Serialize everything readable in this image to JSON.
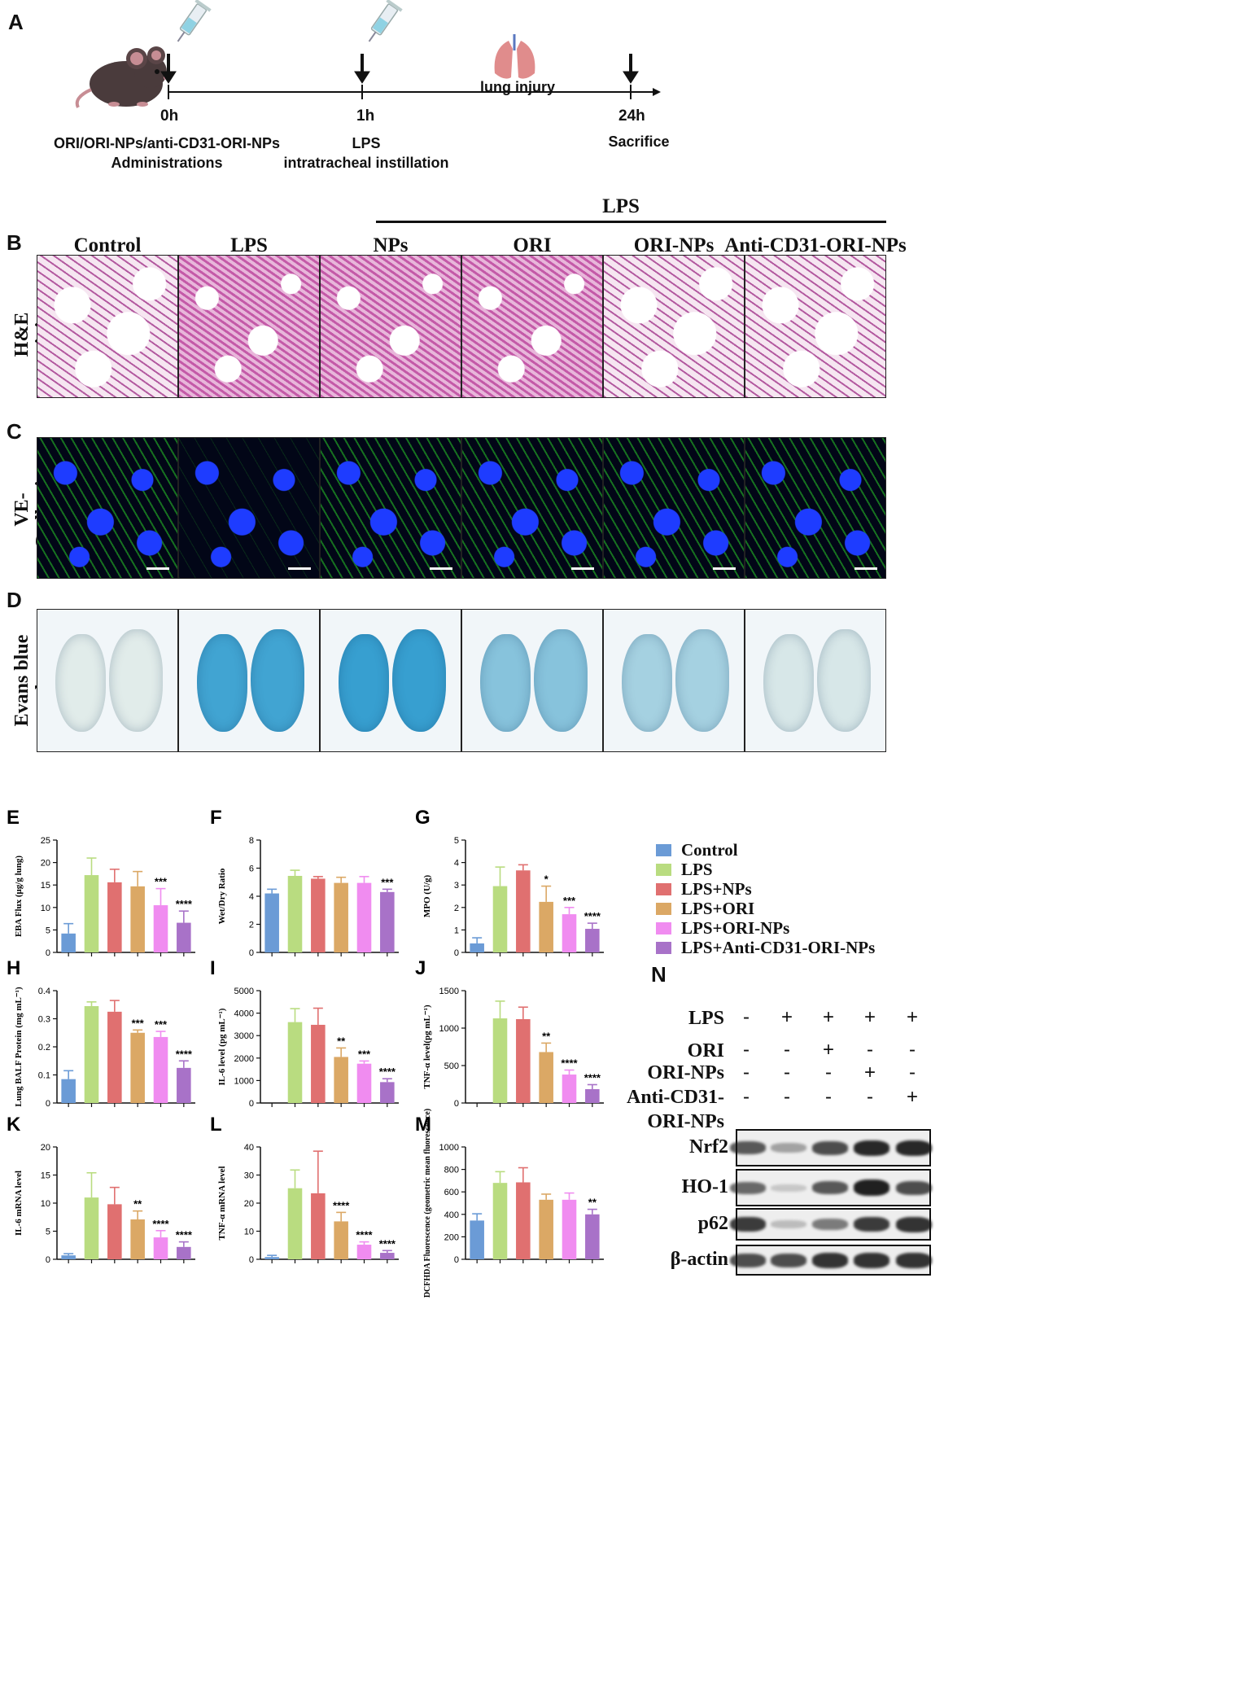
{
  "panel_letters": {
    "A": "A",
    "B": "B",
    "C": "C",
    "D": "D",
    "E": "E",
    "F": "F",
    "G": "G",
    "H": "H",
    "I": "I",
    "J": "J",
    "K": "K",
    "L": "L",
    "M": "M",
    "N": "N"
  },
  "timeline": {
    "t0": "0h",
    "t1": "1h",
    "t24": "24h",
    "lung_injury": "lung injury",
    "admin_line1": "ORI/ORI-NPs/anti-CD31-ORI-NPs",
    "admin_line2": "Administrations",
    "lps_line1": "LPS",
    "lps_line2": "intratracheal instillation",
    "sacrifice": "Sacrifice"
  },
  "lps_bracket": "LPS",
  "columns": [
    "Control",
    "LPS",
    "NPs",
    "ORI",
    "ORI-NPs",
    "Anti-CD31-ORI-NPs"
  ],
  "row_labels": {
    "he": "H&E staining",
    "ve": "VE-Cadherin",
    "evans": "Evans blue dye"
  },
  "legend": [
    {
      "label": "Control",
      "color": "#6b9bd6"
    },
    {
      "label": "LPS",
      "color": "#b9dc80"
    },
    {
      "label": "LPS+NPs",
      "color": "#e07070"
    },
    {
      "label": "LPS+ORI",
      "color": "#dba865"
    },
    {
      "label": "LPS+ORI-NPs",
      "color": "#f08cf0"
    },
    {
      "label": "LPS+Anti-CD31-ORI-NPs",
      "color": "#a872c8"
    }
  ],
  "chart_data": [
    {
      "id": "E",
      "type": "bar",
      "ylabel": "EBA Flux (μg/g lung)",
      "ylim": [
        0,
        25
      ],
      "yticks": [
        0,
        5,
        10,
        15,
        20,
        25
      ],
      "values": [
        4.2,
        17.2,
        15.6,
        14.7,
        10.5,
        6.6
      ],
      "errors": [
        2.2,
        3.8,
        2.9,
        3.3,
        3.7,
        2.6
      ],
      "significance": [
        "",
        "",
        "",
        "",
        "***",
        "****"
      ]
    },
    {
      "id": "F",
      "type": "bar",
      "ylabel": "Wet/Dry Ratio",
      "ylim": [
        0,
        8
      ],
      "yticks": [
        0,
        2,
        4,
        6,
        8
      ],
      "values": [
        4.2,
        5.45,
        5.25,
        4.95,
        4.95,
        4.3
      ],
      "errors": [
        0.3,
        0.4,
        0.15,
        0.4,
        0.45,
        0.2
      ],
      "significance": [
        "",
        "",
        "",
        "",
        "",
        "***"
      ]
    },
    {
      "id": "G",
      "type": "bar",
      "ylabel": "MPO (U/g)",
      "ylim": [
        0,
        5
      ],
      "yticks": [
        0,
        1,
        2,
        3,
        4,
        5
      ],
      "values": [
        0.4,
        2.95,
        3.65,
        2.25,
        1.7,
        1.05
      ],
      "errors": [
        0.25,
        0.85,
        0.25,
        0.7,
        0.3,
        0.25
      ],
      "significance": [
        "",
        "",
        "",
        "*",
        "***",
        "****"
      ]
    },
    {
      "id": "H",
      "type": "bar",
      "ylabel": "Lung BALF Protein (mg mL⁻¹)",
      "ylim": [
        0,
        0.4
      ],
      "yticks": [
        0,
        0.1,
        0.2,
        0.3,
        0.4
      ],
      "values": [
        0.085,
        0.345,
        0.325,
        0.25,
        0.235,
        0.125
      ],
      "errors": [
        0.03,
        0.015,
        0.04,
        0.01,
        0.02,
        0.025
      ],
      "significance": [
        "",
        "",
        "",
        "***",
        "***",
        "****"
      ]
    },
    {
      "id": "I",
      "type": "bar",
      "ylabel": "IL-6 level (pg mL⁻¹)",
      "ylim": [
        0,
        5000
      ],
      "yticks": [
        0,
        1000,
        2000,
        3000,
        4000,
        5000
      ],
      "values": [
        0,
        3600,
        3480,
        2050,
        1750,
        930
      ],
      "errors": [
        0,
        600,
        740,
        400,
        120,
        150
      ],
      "significance": [
        "",
        "",
        "",
        "**",
        "***",
        "****"
      ]
    },
    {
      "id": "J",
      "type": "bar",
      "ylabel": "TNF-α level(pg mL⁻¹)",
      "ylim": [
        0,
        1500
      ],
      "yticks": [
        0,
        500,
        1000,
        1500
      ],
      "values": [
        0,
        1130,
        1120,
        680,
        380,
        185
      ],
      "errors": [
        0,
        230,
        160,
        120,
        60,
        60
      ],
      "significance": [
        "",
        "",
        "",
        "**",
        "****",
        "****"
      ]
    },
    {
      "id": "K",
      "type": "bar",
      "ylabel": "IL-6 mRNA level",
      "ylim": [
        0,
        20
      ],
      "yticks": [
        0,
        5,
        10,
        15,
        20
      ],
      "values": [
        0.7,
        11.0,
        9.8,
        7.1,
        3.9,
        2.2
      ],
      "errors": [
        0.3,
        4.4,
        3.0,
        1.5,
        1.2,
        0.9
      ],
      "significance": [
        "",
        "",
        "",
        "**",
        "****",
        "****"
      ]
    },
    {
      "id": "L",
      "type": "bar",
      "ylabel": "TNF-α mRNA level",
      "ylim": [
        0,
        40
      ],
      "yticks": [
        0,
        10,
        20,
        30,
        40
      ],
      "values": [
        0.8,
        25.3,
        23.5,
        13.5,
        5.2,
        2.3
      ],
      "errors": [
        0.6,
        6.5,
        15,
        3.2,
        1.0,
        0.8
      ],
      "significance": [
        "",
        "",
        "",
        "****",
        "****",
        "****"
      ]
    },
    {
      "id": "M",
      "type": "bar",
      "ylabel": "DCFHDA Fluorescence (geometric mean fluorescence)",
      "ylim": [
        0,
        1000
      ],
      "yticks": [
        0,
        200,
        400,
        600,
        800,
        1000
      ],
      "values": [
        345,
        680,
        685,
        530,
        530,
        400
      ],
      "errors": [
        60,
        100,
        130,
        50,
        60,
        45
      ],
      "significance": [
        "",
        "",
        "",
        "",
        "",
        "**"
      ]
    }
  ],
  "western": {
    "conditions": [
      {
        "label": "LPS",
        "signs": [
          "-",
          "+",
          "+",
          "+",
          "+"
        ]
      },
      {
        "label": "ORI",
        "signs": [
          "-",
          "-",
          "+",
          "-",
          "-"
        ]
      },
      {
        "label": "ORI-NPs",
        "signs": [
          "-",
          "-",
          "-",
          "+",
          "-"
        ]
      },
      {
        "label": "Anti-CD31-ORI-NPs",
        "signs": [
          "-",
          "-",
          "-",
          "-",
          "+"
        ]
      }
    ],
    "proteins": [
      "Nrf2",
      "HO-1",
      "p62",
      "β-actin"
    ],
    "intensity": {
      "Nrf2": [
        0.7,
        0.3,
        0.75,
        0.95,
        0.95
      ],
      "HO-1": [
        0.6,
        0.1,
        0.7,
        1.0,
        0.75
      ],
      "p62": [
        0.85,
        0.15,
        0.5,
        0.85,
        0.9
      ],
      "β-actin": [
        0.75,
        0.75,
        0.9,
        0.9,
        0.9
      ]
    }
  }
}
